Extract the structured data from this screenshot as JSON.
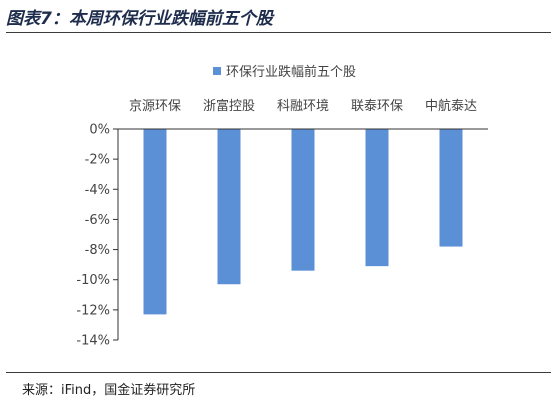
{
  "figure_title": "图表7：本周环保行业跌幅前五个股",
  "source": "来源：iFind，国金证券研究所",
  "chart_data": {
    "type": "bar",
    "categories": [
      "京源环保",
      "浙富控股",
      "科融环境",
      "联泰环保",
      "中航泰达"
    ],
    "series": [
      {
        "name": "环保行业跌幅前五个股",
        "values": [
          -12.3,
          -10.3,
          -9.4,
          -9.1,
          -7.8
        ]
      }
    ],
    "ylim": [
      -14,
      0
    ],
    "yticks": [
      0,
      -2,
      -4,
      -6,
      -8,
      -10,
      -12,
      -14
    ],
    "ytick_labels": [
      "0%",
      "-2%",
      "-4%",
      "-6%",
      "-8%",
      "-10%",
      "-12%",
      "-14%"
    ],
    "legend_position": "top",
    "category_label_position": "top",
    "grid": false,
    "bar_color": "#5b8fd6"
  }
}
